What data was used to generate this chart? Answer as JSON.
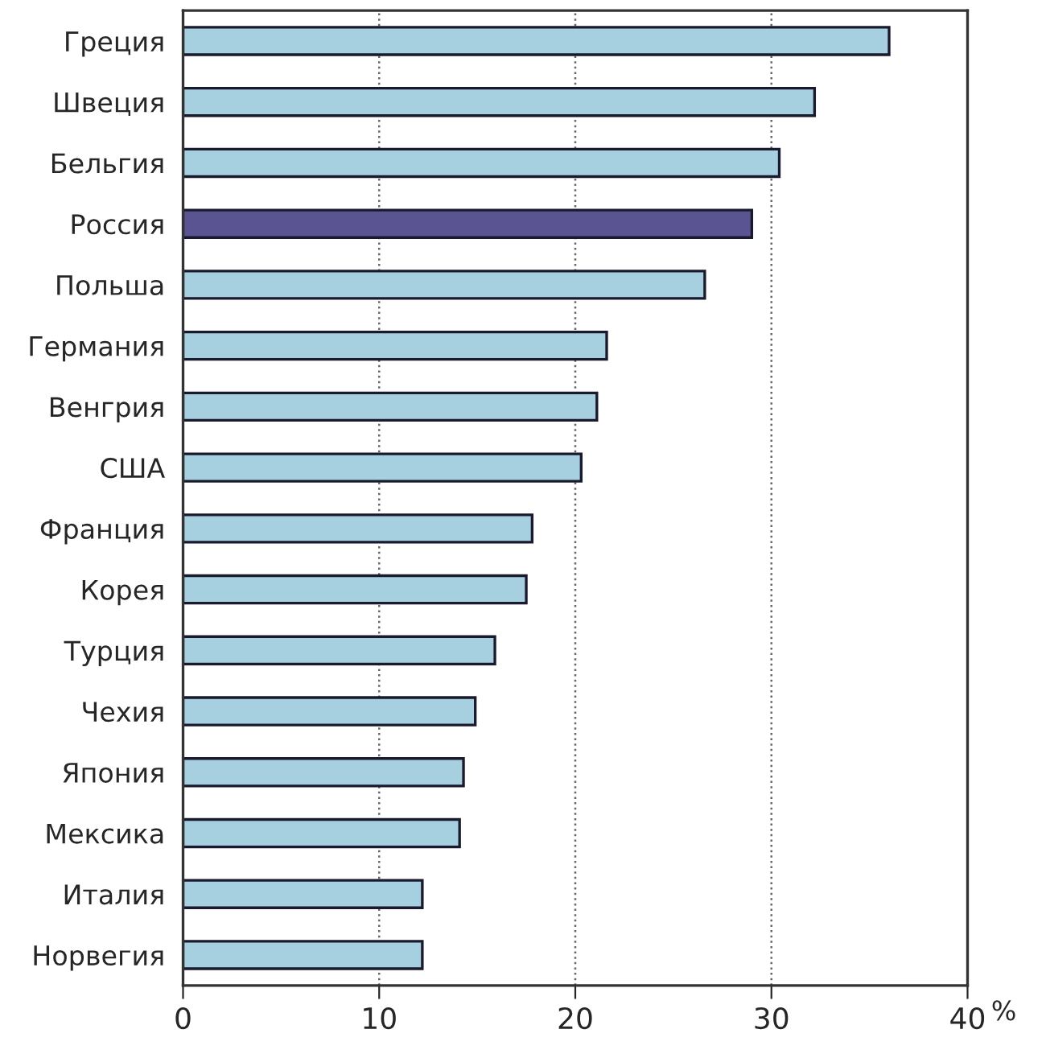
{
  "chart_data": {
    "type": "bar",
    "orientation": "horizontal",
    "xlabel": "%",
    "categories": [
      "Греция",
      "Швеция",
      "Бельгия",
      "Россия",
      "Польша",
      "Германия",
      "Венгрия",
      "США",
      "Франция",
      "Корея",
      "Турция",
      "Чехия",
      "Япония",
      "Мексика",
      "Италия",
      "Норвегия"
    ],
    "values": [
      36.0,
      32.2,
      30.4,
      29.0,
      26.6,
      21.6,
      21.1,
      20.3,
      17.8,
      17.5,
      15.9,
      14.9,
      14.3,
      14.1,
      12.2,
      12.2
    ],
    "colors": [
      "#a6cfe0",
      "#a6cfe0",
      "#a6cfe0",
      "#5b5493",
      "#a6cfe0",
      "#a6cfe0",
      "#a6cfe0",
      "#a6cfe0",
      "#a6cfe0",
      "#a6cfe0",
      "#a6cfe0",
      "#a6cfe0",
      "#a6cfe0",
      "#a6cfe0",
      "#a6cfe0",
      "#a6cfe0"
    ],
    "xlim": [
      0,
      40
    ],
    "xticks": [
      0,
      10,
      20,
      30,
      40
    ],
    "grid": "x",
    "legend": false
  }
}
